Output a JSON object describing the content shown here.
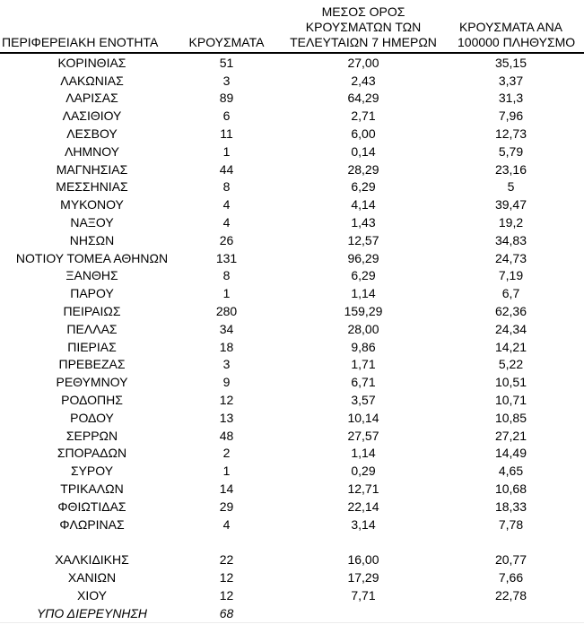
{
  "table": {
    "headers": {
      "region": "ΠΕΡΙΦΕΡΕΙΑΚΗ ΕΝΟΤΗΤΑ",
      "cases": "ΚΡΟΥΣΜΑΤΑ",
      "avg7_lines": [
        "ΜΕΣΟΣ ΟΡΟΣ",
        "ΚΡΟΥΣΜΑΤΩΝ ΤΩΝ",
        "ΤΕΛΕΥΤΑΙΩΝ 7 ΗΜΕΡΩΝ"
      ],
      "per100k_lines": [
        "ΚΡΟΥΣΜΑΤΑ ΑΝΑ",
        "100000 ΠΛΗΘΥΣΜΟ"
      ]
    },
    "rows": [
      {
        "region": "ΚΟΡΙΝΘΙΑΣ",
        "cases": "51",
        "avg7": "27,00",
        "per100k": "35,15"
      },
      {
        "region": "ΛΑΚΩΝΙΑΣ",
        "cases": "3",
        "avg7": "2,43",
        "per100k": "3,37"
      },
      {
        "region": "ΛΑΡΙΣΑΣ",
        "cases": "89",
        "avg7": "64,29",
        "per100k": "31,3"
      },
      {
        "region": "ΛΑΣΙΘΙΟΥ",
        "cases": "6",
        "avg7": "2,71",
        "per100k": "7,96"
      },
      {
        "region": "ΛΕΣΒΟΥ",
        "cases": "11",
        "avg7": "6,00",
        "per100k": "12,73"
      },
      {
        "region": "ΛΗΜΝΟΥ",
        "cases": "1",
        "avg7": "0,14",
        "per100k": "5,79"
      },
      {
        "region": "ΜΑΓΝΗΣΙΑΣ",
        "cases": "44",
        "avg7": "28,29",
        "per100k": "23,16"
      },
      {
        "region": "ΜΕΣΣΗΝΙΑΣ",
        "cases": "8",
        "avg7": "6,29",
        "per100k": "5"
      },
      {
        "region": "ΜΥΚΟΝΟΥ",
        "cases": "4",
        "avg7": "4,14",
        "per100k": "39,47"
      },
      {
        "region": "ΝΑΞΟΥ",
        "cases": "4",
        "avg7": "1,43",
        "per100k": "19,2"
      },
      {
        "region": "ΝΗΣΩΝ",
        "cases": "26",
        "avg7": "12,57",
        "per100k": "34,83"
      },
      {
        "region": "ΝΟΤΙΟΥ ΤΟΜΕΑ ΑΘΗΝΩΝ",
        "cases": "131",
        "avg7": "96,29",
        "per100k": "24,73"
      },
      {
        "region": "ΞΑΝΘΗΣ",
        "cases": "8",
        "avg7": "6,29",
        "per100k": "7,19"
      },
      {
        "region": "ΠΑΡΟΥ",
        "cases": "1",
        "avg7": "1,14",
        "per100k": "6,7"
      },
      {
        "region": "ΠΕΙΡΑΙΩΣ",
        "cases": "280",
        "avg7": "159,29",
        "per100k": "62,36"
      },
      {
        "region": "ΠΕΛΛΑΣ",
        "cases": "34",
        "avg7": "28,00",
        "per100k": "24,34"
      },
      {
        "region": "ΠΙΕΡΙΑΣ",
        "cases": "18",
        "avg7": "9,86",
        "per100k": "14,21"
      },
      {
        "region": "ΠΡΕΒΕΖΑΣ",
        "cases": "3",
        "avg7": "1,71",
        "per100k": "5,22"
      },
      {
        "region": "ΡΕΘΥΜΝΟΥ",
        "cases": "9",
        "avg7": "6,71",
        "per100k": "10,51"
      },
      {
        "region": "ΡΟΔΟΠΗΣ",
        "cases": "12",
        "avg7": "3,57",
        "per100k": "10,71"
      },
      {
        "region": "ΡΟΔΟΥ",
        "cases": "13",
        "avg7": "10,14",
        "per100k": "10,85"
      },
      {
        "region": "ΣΕΡΡΩΝ",
        "cases": "48",
        "avg7": "27,57",
        "per100k": "27,21"
      },
      {
        "region": "ΣΠΟΡΑΔΩΝ",
        "cases": "2",
        "avg7": "1,14",
        "per100k": "14,49"
      },
      {
        "region": "ΣΥΡΟΥ",
        "cases": "1",
        "avg7": "0,29",
        "per100k": "4,65"
      },
      {
        "region": "ΤΡΙΚΑΛΩΝ",
        "cases": "14",
        "avg7": "12,71",
        "per100k": "10,68"
      },
      {
        "region": "ΦΘΙΩΤΙΔΑΣ",
        "cases": "29",
        "avg7": "22,14",
        "per100k": "18,33"
      },
      {
        "region": "ΦΛΩΡΙΝΑΣ",
        "cases": "4",
        "avg7": "3,14",
        "per100k": "7,78"
      },
      {
        "blank": true
      },
      {
        "region": "ΧΑΛΚΙΔΙΚΗΣ",
        "cases": "22",
        "avg7": "16,00",
        "per100k": "20,77"
      },
      {
        "region": "ΧΑΝΙΩΝ",
        "cases": "12",
        "avg7": "17,29",
        "per100k": "7,66"
      },
      {
        "region": "ΧΙΟΥ",
        "cases": "12",
        "avg7": "7,71",
        "per100k": "22,78"
      },
      {
        "region": "ΥΠΟ ΔΙΕΡΕΥΝΗΣΗ",
        "cases": "68",
        "avg7": "",
        "per100k": "",
        "italic": true
      }
    ],
    "colors": {
      "text": "#000000",
      "header_rule": "#000000",
      "background": "#ffffff"
    }
  }
}
